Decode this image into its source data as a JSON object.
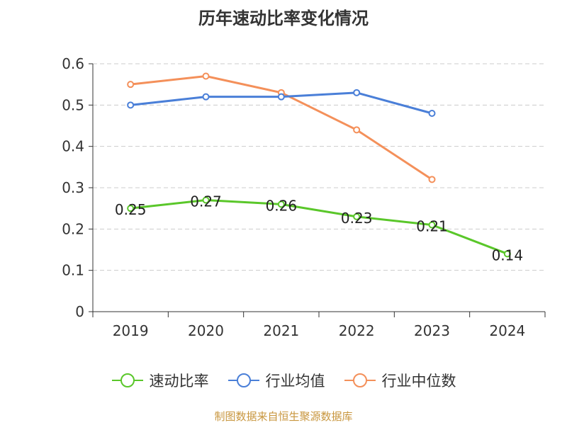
{
  "title": "历年速动比率变化情况",
  "source": "制图数据来自恒生聚源数据库",
  "chart_data": {
    "type": "line",
    "title": "历年速动比率变化情况",
    "categories": [
      "2019",
      "2020",
      "2021",
      "2022",
      "2023",
      "2024"
    ],
    "ylim": [
      0,
      0.6
    ],
    "yticks": [
      0,
      0.1,
      0.2,
      0.3,
      0.4,
      0.5,
      0.6
    ],
    "ytick_labels": [
      "0",
      "0.1",
      "0.2",
      "0.3",
      "0.4",
      "0.5",
      "0.6"
    ],
    "grid": true,
    "legend_position": "bottom",
    "series": [
      {
        "name": "速动比率",
        "color": "#5ac72a",
        "values": [
          0.25,
          0.27,
          0.26,
          0.23,
          0.21,
          0.14
        ],
        "labels": [
          "0.25",
          "0.27",
          "0.26",
          "0.23",
          "0.21",
          "0.14"
        ]
      },
      {
        "name": "行业均值",
        "color": "#4a7fd8",
        "values": [
          0.5,
          0.52,
          0.52,
          0.53,
          0.48,
          null
        ]
      },
      {
        "name": "行业中位数",
        "color": "#f4905a",
        "values": [
          0.55,
          0.57,
          0.53,
          0.44,
          0.32,
          null
        ]
      }
    ]
  }
}
